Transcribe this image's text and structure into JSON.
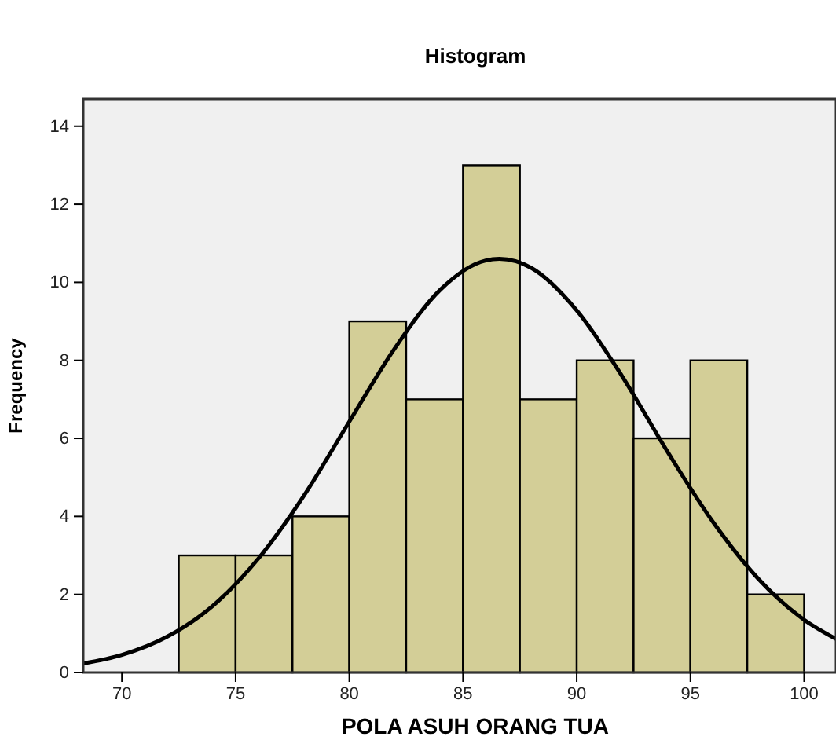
{
  "chart_data": {
    "type": "histogram",
    "title": "Histogram",
    "xlabel": "POLA ASUH ORANG TUA",
    "ylabel": "Frequency",
    "bins": [
      72.5,
      75,
      77.5,
      80,
      82.5,
      85,
      87.5,
      90,
      92.5,
      95,
      97.5,
      100
    ],
    "xlim": [
      68.3,
      101.4
    ],
    "xticks": [
      70,
      75,
      80,
      85,
      90,
      95,
      100
    ],
    "ylim": [
      0,
      14.7
    ],
    "yticks": [
      0,
      2,
      4,
      6,
      8,
      10,
      12,
      14
    ],
    "grid": false,
    "series": [
      {
        "type": "histogram",
        "color": "#d3ce97",
        "values": [
          3,
          3,
          4,
          9,
          7,
          13,
          7,
          8,
          6,
          8,
          2
        ]
      },
      {
        "type": "line",
        "color": "#000000",
        "line_style": "solid",
        "marker": "none",
        "x": [
          68.3,
          70,
          72,
          74,
          76,
          78,
          80,
          82,
          84,
          86,
          86.6,
          88,
          90,
          92,
          94,
          96,
          98,
          100,
          101.4
        ],
        "values": [
          0.23,
          0.45,
          0.92,
          1.71,
          2.92,
          4.53,
          6.43,
          8.31,
          9.81,
          10.56,
          10.6,
          10.37,
          9.28,
          7.59,
          5.65,
          3.85,
          2.39,
          1.35,
          0.86
        ]
      }
    ]
  }
}
